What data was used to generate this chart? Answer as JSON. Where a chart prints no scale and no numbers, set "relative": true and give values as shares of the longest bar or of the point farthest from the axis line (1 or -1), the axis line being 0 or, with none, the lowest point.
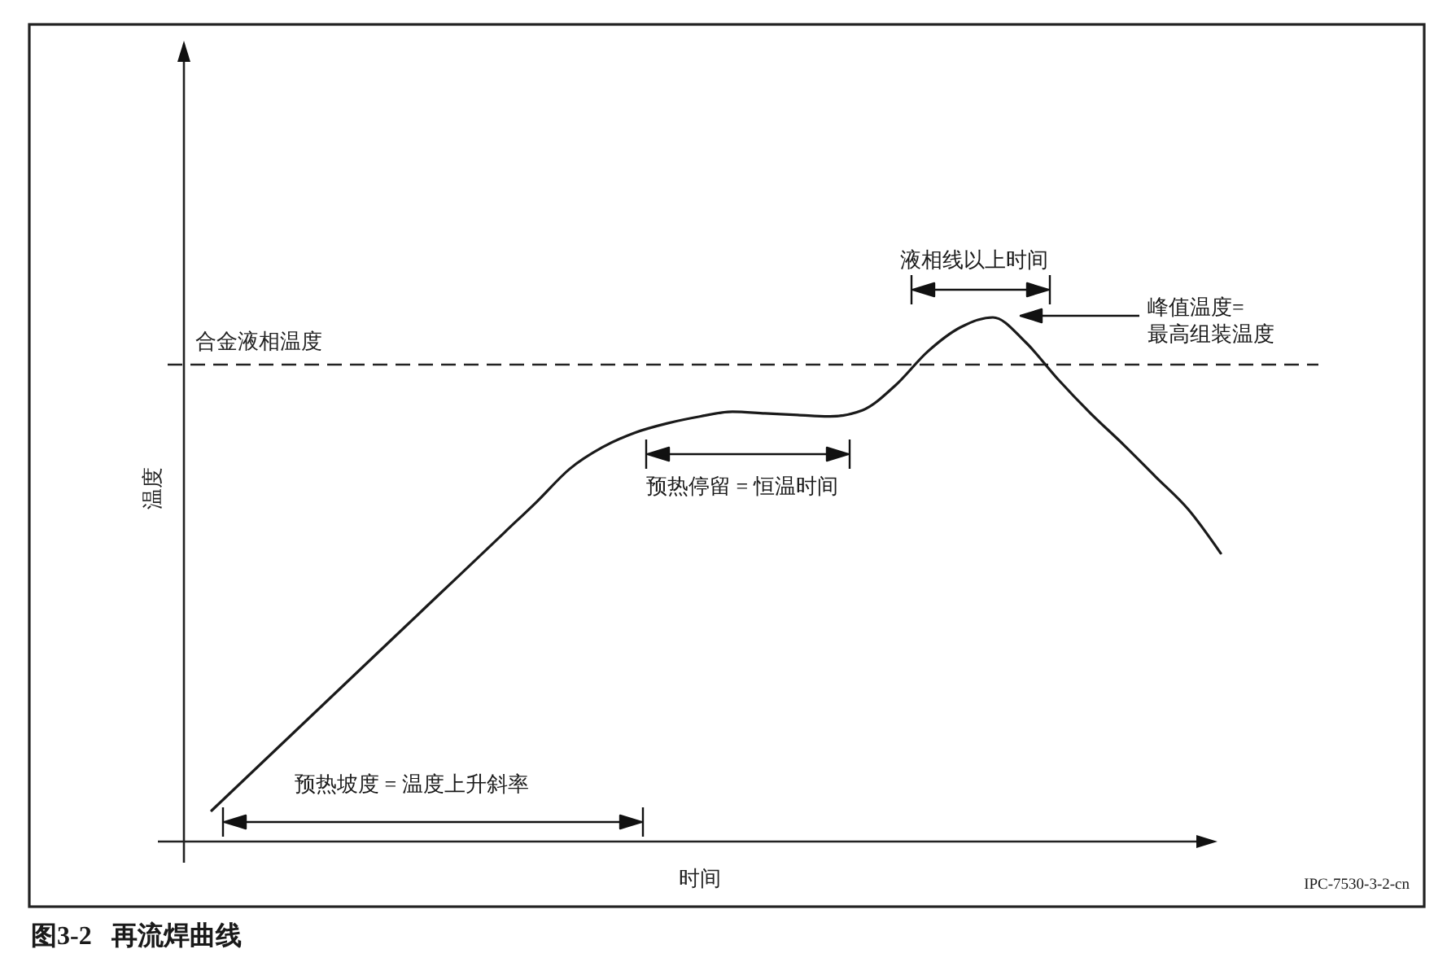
{
  "chart_data": {
    "type": "line",
    "relative": true,
    "categories": [
      null,
      null,
      null,
      null,
      null,
      null,
      null,
      null,
      null,
      null,
      null,
      null,
      null,
      null,
      null,
      null,
      null,
      null,
      null,
      null,
      null,
      null,
      null,
      null,
      null,
      null,
      null,
      null,
      null,
      null,
      null,
      null
    ],
    "series": [
      {
        "color": "#1a1a1a",
        "values": [
          0.059,
          0.118,
          0.177,
          0.236,
          0.295,
          0.354,
          0.413,
          0.472,
          0.531,
          0.59,
          0.649,
          0.711,
          0.752,
          0.78,
          0.798,
          0.811,
          0.82,
          0.817,
          0.814,
          0.811,
          0.823,
          0.87,
          0.935,
          0.981,
          1,
          0.953,
          0.882,
          0.817,
          0.758,
          0.696,
          0.634,
          0.55
        ]
      }
    ],
    "xlabel": "时间",
    "ylabel": "温度",
    "ref_lines": [
      {
        "axis": "y",
        "value": 0.91,
        "label": "合金液相温度",
        "line_style": "dashed",
        "color": "#222222"
      }
    ],
    "annotations": [
      "预热坡度 = 温度上升斜率",
      "预热停留 = 恒温时间",
      "液相线以上时间",
      "峰值温度=\n最高组装温度",
      "IPC-7530-3-2-cn",
      "图3-2   再流焊曲线"
    ]
  }
}
